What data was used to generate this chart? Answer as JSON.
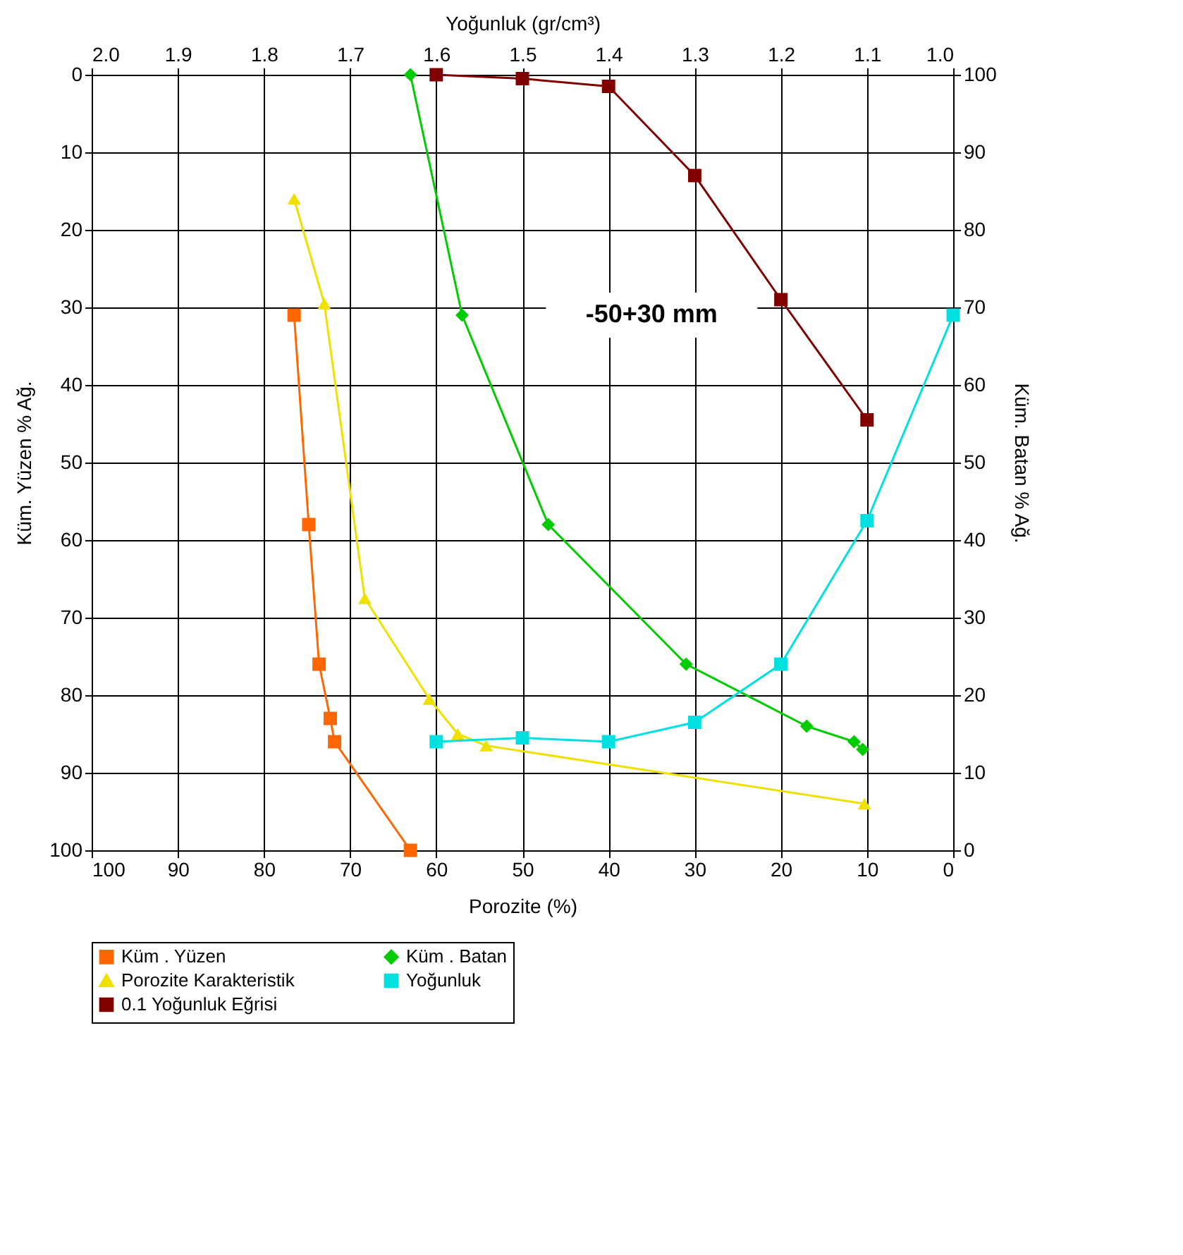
{
  "chart_data": {
    "type": "line",
    "xlabel": "Porozite (%)",
    "ylabel": "Küm. Yüzen % Ağ.",
    "y2label": "Küm. Batan % Ağ.",
    "x2label": "Yoğunluk (gr/cm³)",
    "xlim": [
      100,
      0
    ],
    "xticks": [
      100,
      90,
      80,
      70,
      60,
      50,
      40,
      30,
      20,
      10,
      0
    ],
    "x2lim": [
      2.0,
      1.0
    ],
    "x2ticks": [
      {
        "value": 2.0,
        "label": "2.0"
      },
      {
        "value": 1.9,
        "label": "1.9"
      },
      {
        "value": 1.8,
        "label": "1.8"
      },
      {
        "value": 1.7,
        "label": "1.7"
      },
      {
        "value": 1.6,
        "label": "1.6"
      },
      {
        "value": 1.5,
        "label": "1.5"
      },
      {
        "value": 1.4,
        "label": "1.4"
      },
      {
        "value": 1.3,
        "label": "1.3"
      },
      {
        "value": 1.2,
        "label": "1.2"
      },
      {
        "value": 1.1,
        "label": "1.1"
      },
      {
        "value": 1.0,
        "label": "1.0"
      }
    ],
    "ylim": [
      100,
      0
    ],
    "yticks": [
      100,
      90,
      80,
      70,
      60,
      50,
      40,
      30,
      20,
      10,
      0
    ],
    "y2lim": [
      0,
      100
    ],
    "y2ticks": [
      0,
      10,
      20,
      30,
      40,
      50,
      60,
      70,
      80,
      90,
      100
    ],
    "grid": true,
    "legend": "bottom",
    "line_style": "solid",
    "annotations": [
      "-50+30 mm"
    ],
    "series": [
      {
        "name": "Küm . Yüzen",
        "color": "#ff6600",
        "marker": "square",
        "x": [
          76.5,
          74.8,
          73.6,
          72.3,
          71.8,
          63
        ],
        "values": [
          31,
          58,
          76,
          83,
          86,
          100
        ]
      },
      {
        "name": "Küm . Batan",
        "color": "#00cc00",
        "marker": "diamond",
        "axis": "y2",
        "x": [
          63,
          57,
          47,
          31,
          17,
          11.5,
          10.5
        ],
        "values": [
          100,
          69,
          42,
          24,
          16,
          14,
          13
        ]
      },
      {
        "name": "Porozite Karakteristik",
        "color": "#f0e000",
        "marker": "triangle",
        "x": [
          76.5,
          73,
          68.3,
          60.8,
          57.5,
          54.2,
          10.3
        ],
        "values": [
          16,
          29.5,
          67.5,
          80.5,
          85,
          86.5,
          94
        ]
      },
      {
        "name": "Yoğunluk",
        "color": "#00e0e0",
        "marker": "square",
        "axis": "y2",
        "x": [
          60,
          50,
          40,
          30,
          20,
          10,
          0
        ],
        "values": [
          14,
          14.5,
          14,
          16.5,
          24,
          42.5,
          69
        ]
      },
      {
        "name": "0.1 Yoğunluk Eğrisi",
        "color": "#800000",
        "marker": "square",
        "axis": "y2",
        "x": [
          60,
          50,
          40,
          30,
          20,
          10
        ],
        "values": [
          100,
          99.5,
          98.5,
          87,
          71,
          55.5
        ]
      }
    ]
  }
}
